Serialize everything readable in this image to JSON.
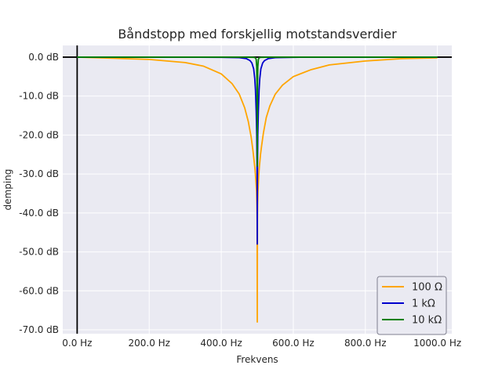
{
  "chart_data": {
    "type": "line",
    "title": "Båndstopp med forskjellig motstandsverdier",
    "xlabel": "Frekvens",
    "ylabel": "demping",
    "xlim": [
      -40,
      1040
    ],
    "ylim": [
      -71,
      3
    ],
    "xticks": [
      0,
      200,
      400,
      600,
      800,
      1000
    ],
    "xtick_labels": [
      "0.0 Hz",
      "200.0 Hz",
      "400.0 Hz",
      "600.0 Hz",
      "800.0 Hz",
      "1000.0 Hz"
    ],
    "yticks": [
      0,
      -10,
      -20,
      -30,
      -40,
      -50,
      -60,
      -70
    ],
    "ytick_labels": [
      "0.0 dB",
      "-10.0 dB",
      "-20.0 dB",
      "-30.0 dB",
      "-40.0 dB",
      "-50.0 dB",
      "-60.0 dB",
      "-70.0 dB"
    ],
    "grid": true,
    "legend_position": "bottom-right",
    "axis_lines": {
      "x": 0,
      "y": 0
    },
    "series": [
      {
        "name": "100 Ω",
        "color": "#ffa500",
        "x": [
          0,
          100,
          200,
          300,
          350,
          400,
          430,
          450,
          465,
          475,
          483,
          488,
          491,
          494,
          496,
          498,
          499,
          499.5,
          500,
          500.5,
          501,
          502,
          504,
          506,
          509,
          512,
          517,
          525,
          535,
          550,
          570,
          600,
          650,
          700,
          800,
          900,
          1000
        ],
        "values": [
          0,
          -0.3,
          -0.6,
          -1.4,
          -2.3,
          -4.3,
          -6.8,
          -9.5,
          -13.0,
          -16.5,
          -20.5,
          -24.0,
          -26.5,
          -29.0,
          -31.5,
          -34.5,
          -38.0,
          -42.0,
          -68.0,
          -42.0,
          -38.0,
          -34.5,
          -30.5,
          -28.0,
          -25.0,
          -22.8,
          -19.5,
          -15.5,
          -12.5,
          -9.5,
          -7.2,
          -5.0,
          -3.2,
          -2.0,
          -1.0,
          -0.4,
          -0.2
        ]
      },
      {
        "name": "1 kΩ",
        "color": "#0000cd",
        "x": [
          0,
          300,
          400,
          450,
          470,
          480,
          485,
          490,
          493,
          495,
          497,
          498.5,
          499.5,
          500,
          500.5,
          501.5,
          503,
          505,
          507,
          510,
          515,
          520,
          530,
          550,
          600,
          700,
          1000
        ],
        "values": [
          0,
          -0.02,
          -0.05,
          -0.15,
          -0.4,
          -0.9,
          -1.5,
          -3.0,
          -5.5,
          -8.5,
          -14.0,
          -20.0,
          -30.0,
          -48.0,
          -30.0,
          -20.0,
          -14.0,
          -8.5,
          -5.5,
          -3.0,
          -1.5,
          -0.9,
          -0.4,
          -0.15,
          -0.05,
          -0.02,
          0
        ]
      },
      {
        "name": "10 kΩ",
        "color": "#008000",
        "x": [
          0,
          450,
          490,
          495,
          497,
          498.5,
          499.3,
          499.7,
          500,
          500.3,
          500.7,
          501.5,
          503,
          505,
          510,
          550,
          1000
        ],
        "values": [
          0,
          0,
          -0.05,
          -0.2,
          -0.6,
          -2.5,
          -8.0,
          -16.0,
          -28.0,
          -16.0,
          -8.0,
          -2.5,
          -0.6,
          -0.2,
          -0.05,
          0,
          0
        ]
      }
    ]
  }
}
